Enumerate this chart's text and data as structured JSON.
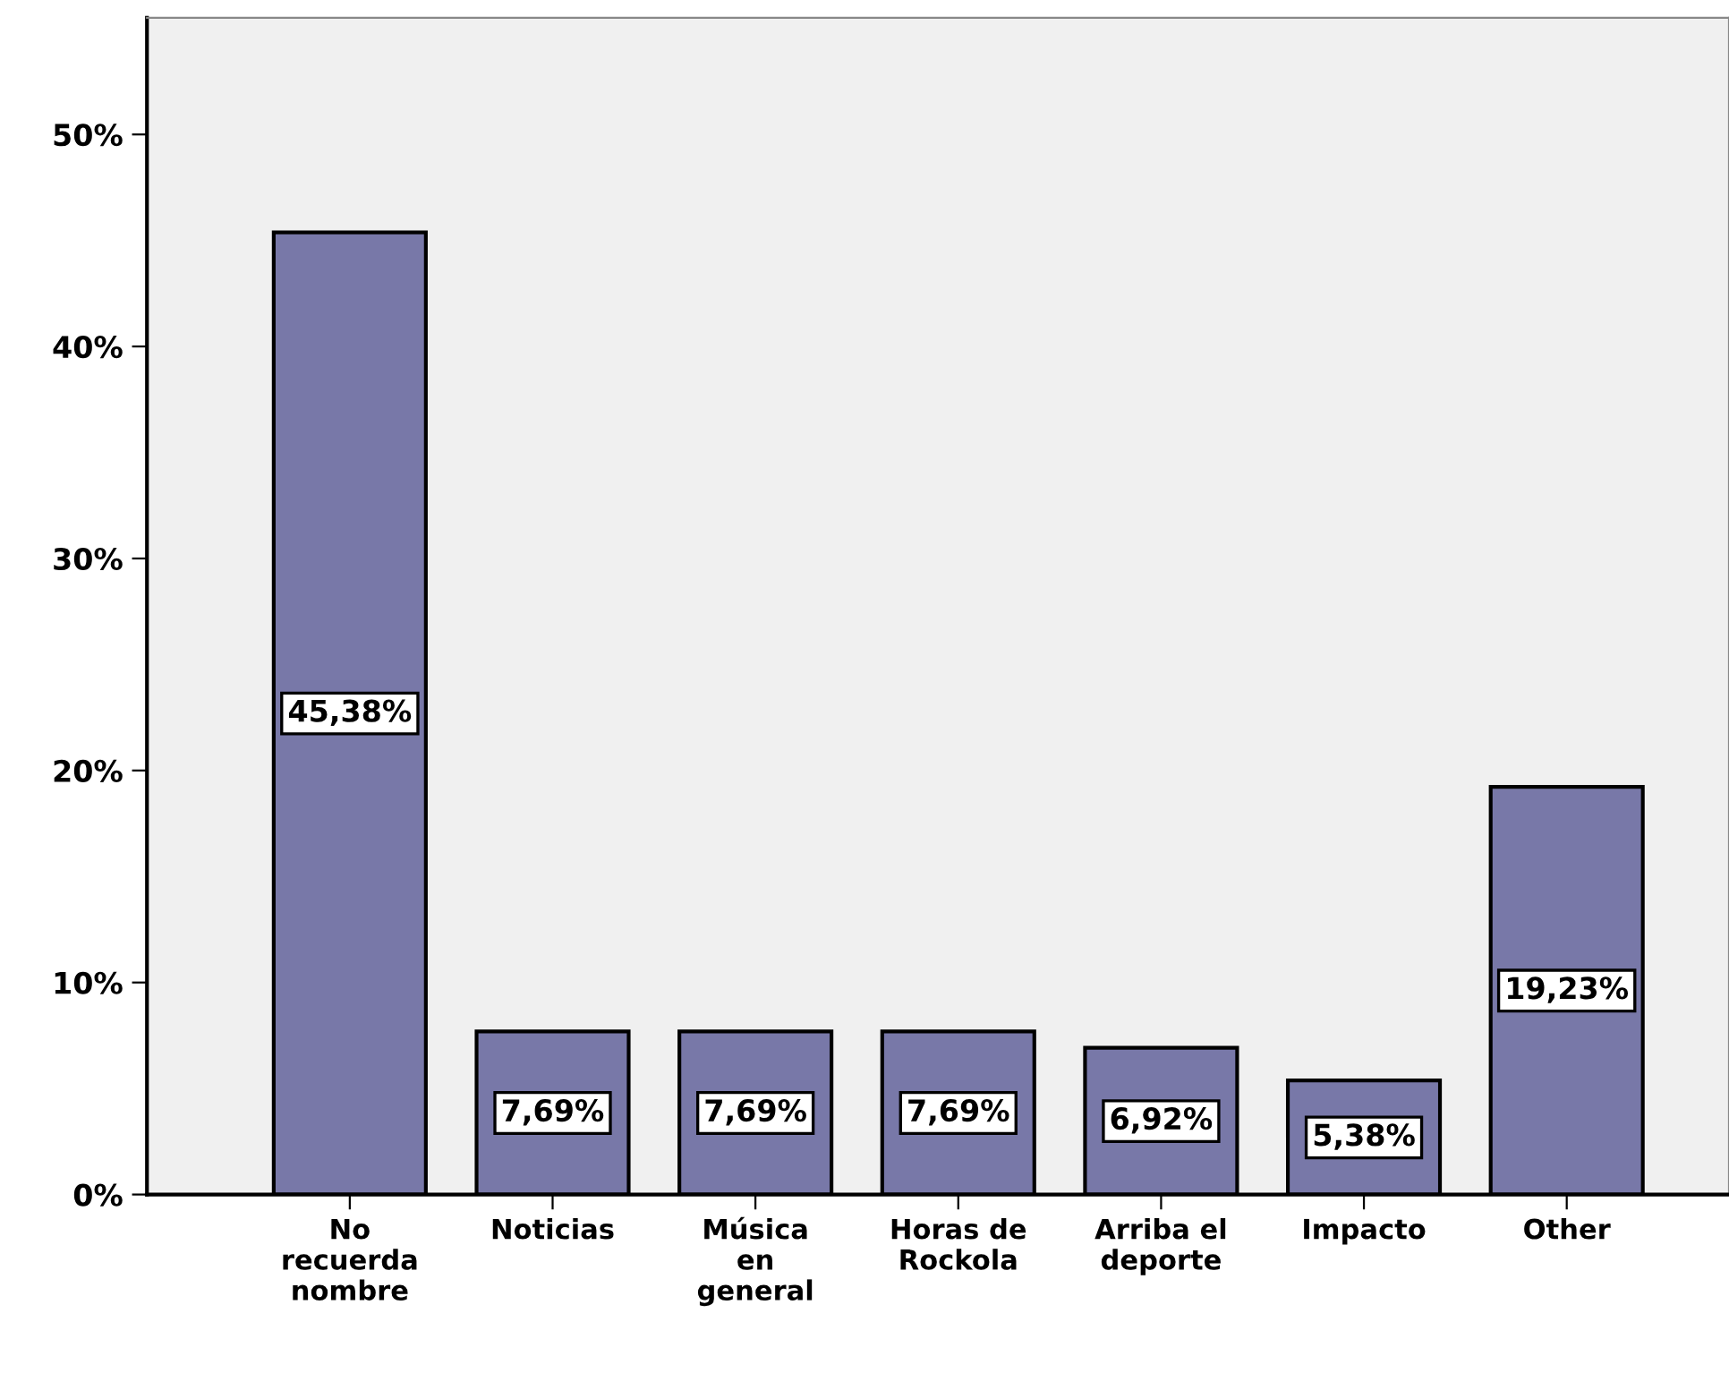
{
  "chart_data": {
    "type": "bar",
    "categories": [
      "No\nrecuerda\nnombre",
      "Noticias",
      "Música\nen\ngeneral",
      "Horas de\nRockola",
      "Arriba el\ndeporte",
      "Impacto",
      "Other"
    ],
    "values": [
      45.38,
      7.69,
      7.69,
      7.69,
      6.92,
      5.38,
      19.23
    ],
    "value_labels": [
      "45,38%",
      "7,69%",
      "7,69%",
      "7,69%",
      "6,92%",
      "5,38%",
      "19,23%"
    ],
    "color": "#7878a8",
    "ylim": [
      0,
      55.5
    ],
    "yticks": [
      {
        "value": 0,
        "label": "0%"
      },
      {
        "value": 10,
        "label": "10%"
      },
      {
        "value": 20,
        "label": "20%"
      },
      {
        "value": 30,
        "label": "30%"
      },
      {
        "value": 40,
        "label": "40%"
      },
      {
        "value": 50,
        "label": "50%"
      }
    ],
    "grid": false,
    "legend": false
  }
}
